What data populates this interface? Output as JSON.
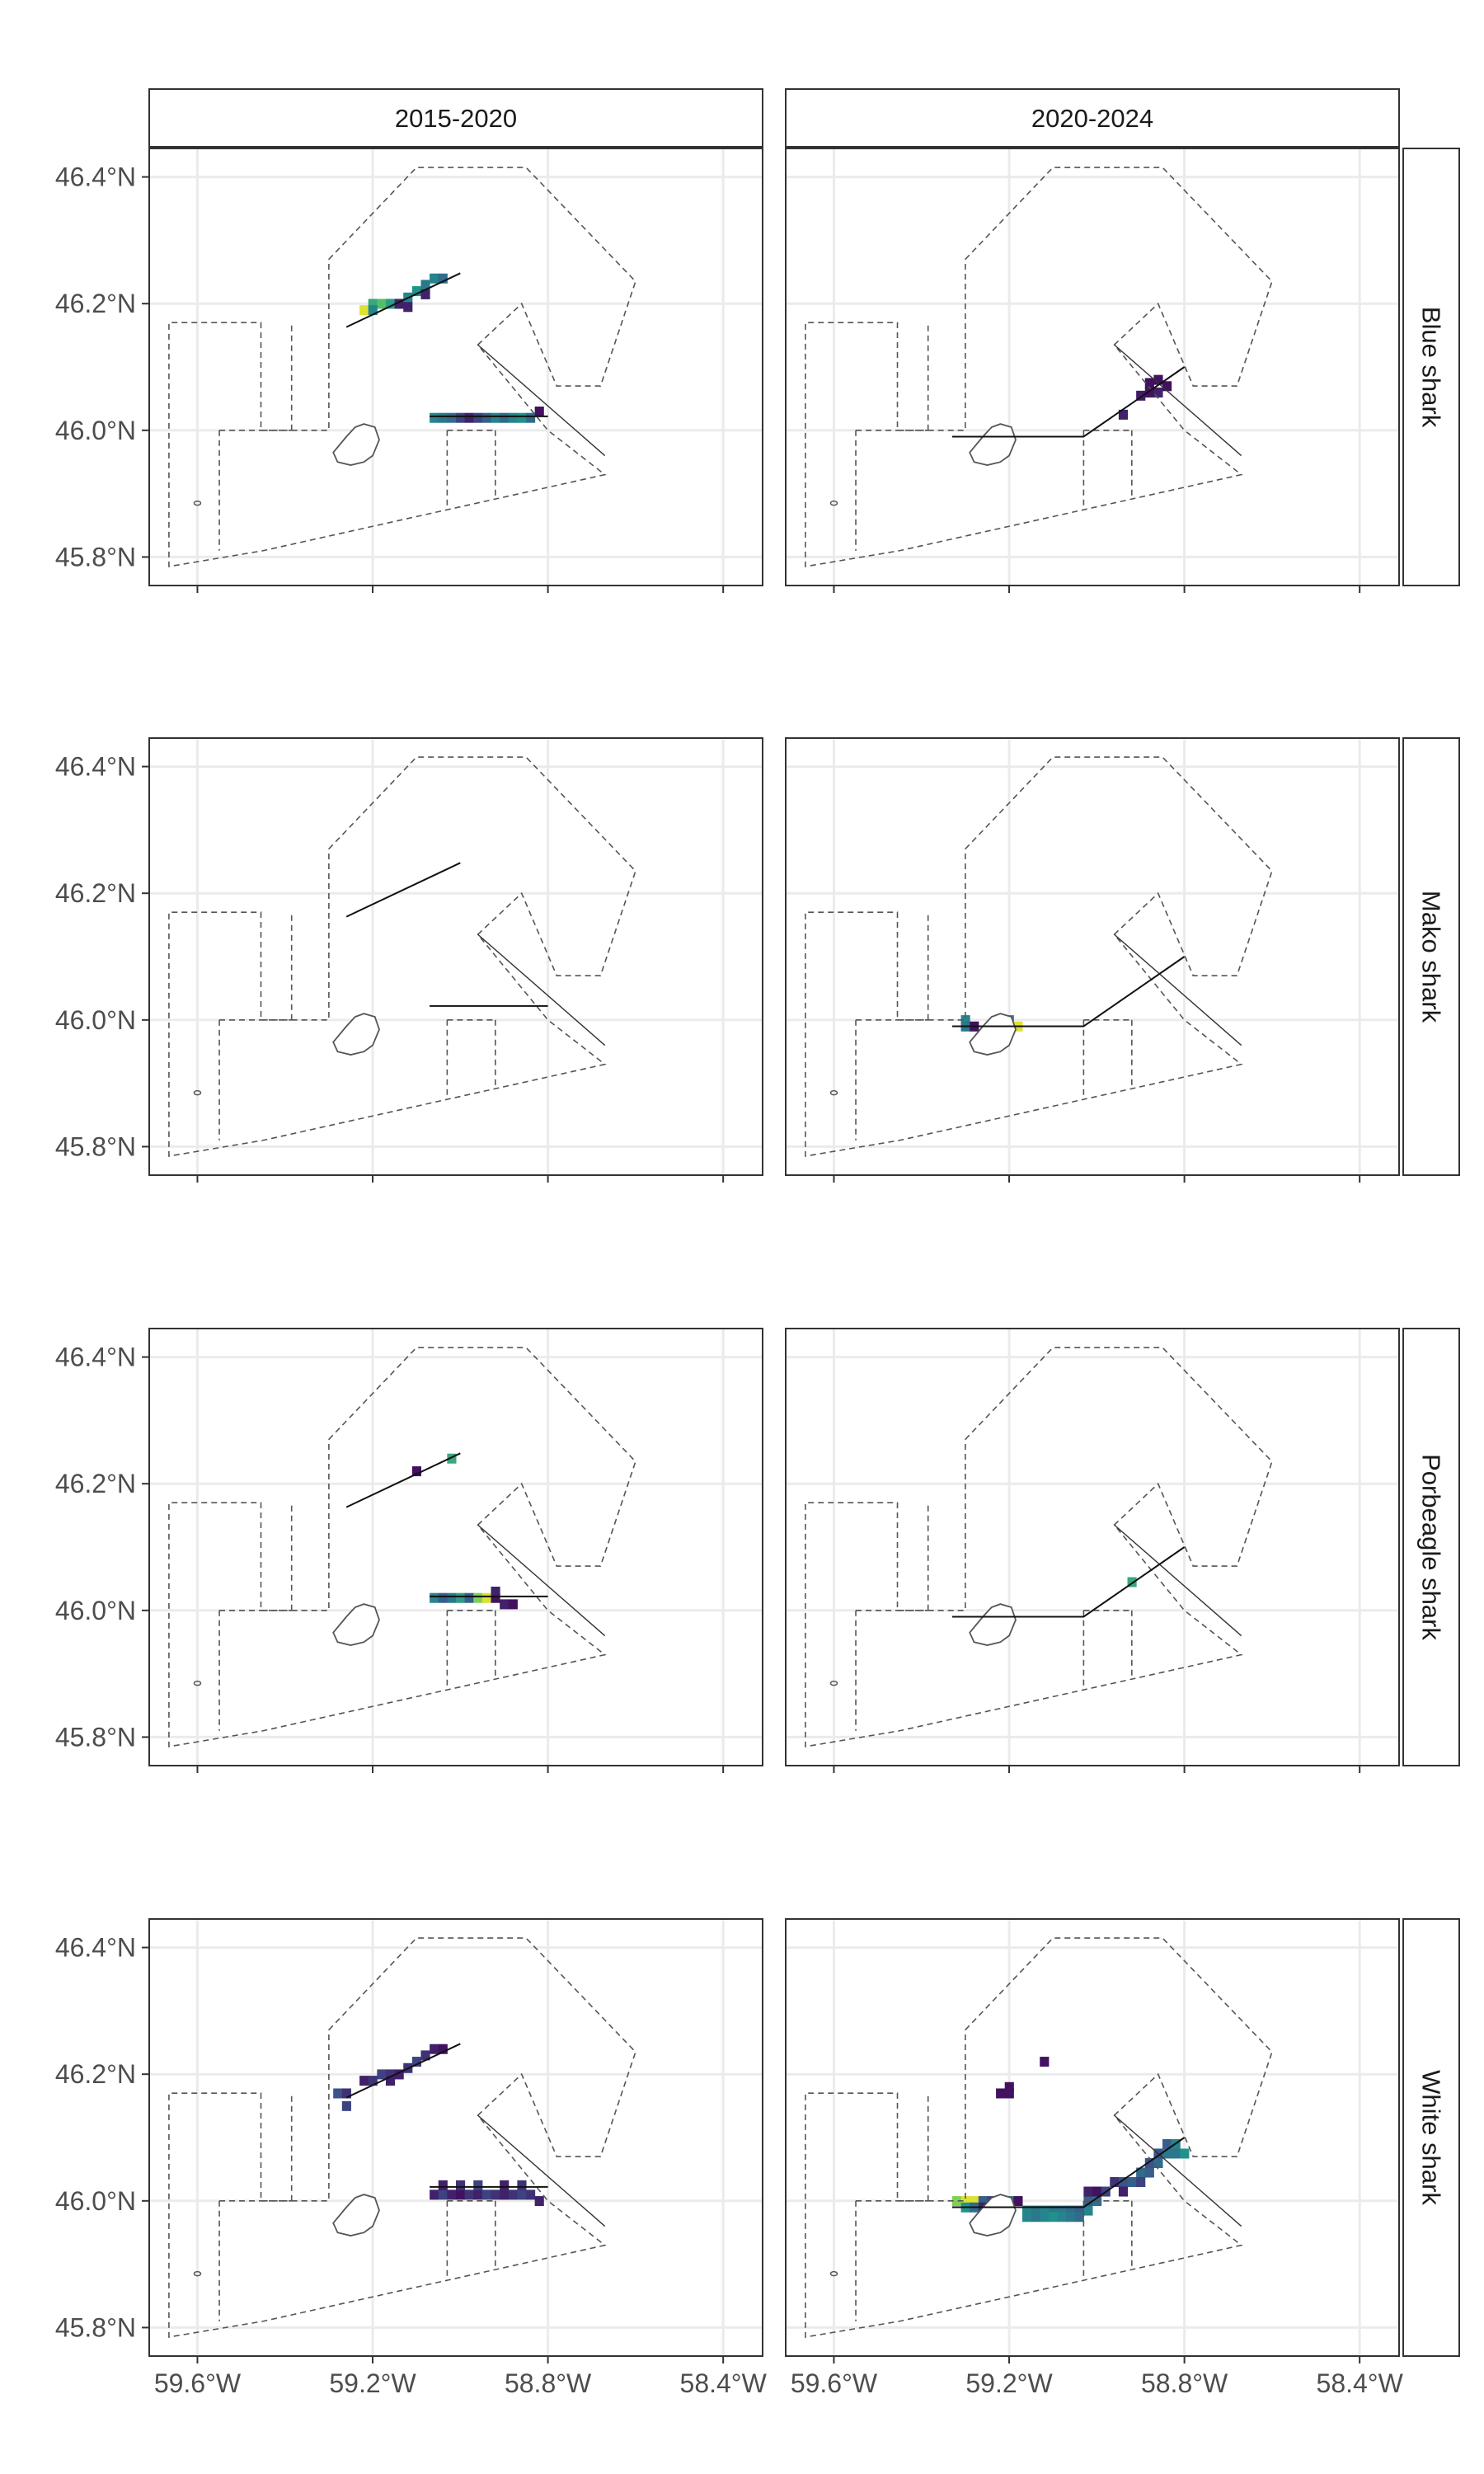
{
  "chart_data": {
    "type": "heatmap",
    "title": "",
    "xlabel": "",
    "ylabel": "",
    "facet_columns": [
      "2015-2020",
      "2020-2024"
    ],
    "facet_rows": [
      "Blue shark",
      "Mako shark",
      "Porbeagle shark",
      "White shark"
    ],
    "x_ticks": [
      {
        "value": -59.6,
        "label": "59.6°W"
      },
      {
        "value": -59.2,
        "label": "59.2°W"
      },
      {
        "value": -58.8,
        "label": "58.8°W"
      },
      {
        "value": -58.4,
        "label": "58.4°W"
      }
    ],
    "y_ticks": [
      {
        "value": 45.8,
        "label": "45.8°N"
      },
      {
        "value": 46.0,
        "label": "46.0°N"
      },
      {
        "value": 46.2,
        "label": "46.2°N"
      },
      {
        "value": 46.4,
        "label": "46.4°N"
      }
    ],
    "xlim": [
      -59.71,
      -58.31
    ],
    "ylim": [
      45.755,
      46.445
    ],
    "grid": true,
    "legend": "none",
    "cell_size_deg": [
      0.02,
      0.015
    ],
    "color_scale": "viridis",
    "color_stops": [
      "#440154",
      "#3b528b",
      "#21918c",
      "#5ec962",
      "#fde725"
    ],
    "cells": {
      "Blue shark|2015-2020": [
        [
          -59.22,
          46.19,
          0.95
        ],
        [
          -59.2,
          46.2,
          0.6
        ],
        [
          -59.18,
          46.2,
          0.7
        ],
        [
          -59.16,
          46.2,
          0.55
        ],
        [
          -59.14,
          46.2,
          0.1
        ],
        [
          -59.12,
          46.21,
          0.45
        ],
        [
          -59.1,
          46.22,
          0.5
        ],
        [
          -59.08,
          46.23,
          0.4
        ],
        [
          -59.06,
          46.24,
          0.45
        ],
        [
          -59.04,
          46.24,
          0.35
        ],
        [
          -59.2,
          46.19,
          0.45
        ],
        [
          -59.12,
          46.195,
          0.1
        ],
        [
          -59.08,
          46.215,
          0.1
        ],
        [
          -59.06,
          46.02,
          0.45
        ],
        [
          -59.04,
          46.02,
          0.4
        ],
        [
          -59.02,
          46.02,
          0.35
        ],
        [
          -59.0,
          46.02,
          0.2
        ],
        [
          -58.98,
          46.02,
          0.1
        ],
        [
          -58.96,
          46.02,
          0.2
        ],
        [
          -58.94,
          46.02,
          0.3
        ],
        [
          -58.92,
          46.02,
          0.45
        ],
        [
          -58.9,
          46.02,
          0.35
        ],
        [
          -58.88,
          46.02,
          0.45
        ],
        [
          -58.86,
          46.02,
          0.5
        ],
        [
          -58.84,
          46.02,
          0.35
        ],
        [
          -58.82,
          46.03,
          0.05
        ]
      ],
      "Blue shark|2020-2024": [
        [
          -59.24,
          45.99,
          0.1
        ],
        [
          -58.94,
          46.025,
          0.1
        ],
        [
          -58.9,
          46.055,
          0.08
        ],
        [
          -58.88,
          46.06,
          0.05
        ],
        [
          -58.88,
          46.075,
          0.05
        ],
        [
          -58.86,
          46.06,
          0.1
        ],
        [
          -58.86,
          46.08,
          0.05
        ],
        [
          -58.84,
          46.07,
          0.05
        ]
      ],
      "Mako shark|2015-2020": [],
      "Mako shark|2020-2024": [
        [
          -59.3,
          46.0,
          0.45
        ],
        [
          -59.3,
          45.99,
          0.4
        ],
        [
          -59.28,
          45.99,
          0.05
        ],
        [
          -59.2,
          46.0,
          0.45
        ],
        [
          -59.2,
          45.99,
          0.5
        ],
        [
          -59.18,
          45.99,
          0.95
        ]
      ],
      "Porbeagle shark|2015-2020": [
        [
          -59.1,
          46.22,
          0.05
        ],
        [
          -59.02,
          46.24,
          0.6
        ],
        [
          -59.06,
          46.02,
          0.45
        ],
        [
          -59.04,
          46.02,
          0.3
        ],
        [
          -59.02,
          46.02,
          0.4
        ],
        [
          -59.0,
          46.02,
          0.55
        ],
        [
          -58.98,
          46.02,
          0.3
        ],
        [
          -58.96,
          46.02,
          0.8
        ],
        [
          -58.94,
          46.02,
          0.95
        ],
        [
          -58.92,
          46.02,
          0.05
        ],
        [
          -58.9,
          46.01,
          0.1
        ],
        [
          -58.88,
          46.01,
          0.05
        ],
        [
          -58.92,
          46.03,
          0.1
        ]
      ],
      "Porbeagle shark|2020-2024": [
        [
          -58.92,
          46.045,
          0.6
        ]
      ],
      "White shark|2015-2020": [
        [
          -59.28,
          46.17,
          0.25
        ],
        [
          -59.26,
          46.15,
          0.2
        ],
        [
          -59.26,
          46.17,
          0.15
        ],
        [
          -59.22,
          46.19,
          0.1
        ],
        [
          -59.2,
          46.19,
          0.15
        ],
        [
          -59.18,
          46.2,
          0.2
        ],
        [
          -59.16,
          46.2,
          0.15
        ],
        [
          -59.14,
          46.2,
          0.1
        ],
        [
          -59.12,
          46.21,
          0.15
        ],
        [
          -59.1,
          46.22,
          0.2
        ],
        [
          -59.08,
          46.23,
          0.15
        ],
        [
          -59.06,
          46.24,
          0.1
        ],
        [
          -59.04,
          46.24,
          0.05
        ],
        [
          -59.16,
          46.19,
          0.1
        ],
        [
          -59.06,
          46.01,
          0.1
        ],
        [
          -59.04,
          46.01,
          0.2
        ],
        [
          -59.02,
          46.01,
          0.1
        ],
        [
          -59.0,
          46.01,
          0.05
        ],
        [
          -58.98,
          46.01,
          0.15
        ],
        [
          -58.96,
          46.01,
          0.1
        ],
        [
          -58.94,
          46.01,
          0.2
        ],
        [
          -58.92,
          46.01,
          0.15
        ],
        [
          -58.9,
          46.01,
          0.1
        ],
        [
          -58.88,
          46.01,
          0.15
        ],
        [
          -58.86,
          46.01,
          0.2
        ],
        [
          -58.84,
          46.01,
          0.15
        ],
        [
          -58.82,
          46.0,
          0.1
        ],
        [
          -59.04,
          46.025,
          0.1
        ],
        [
          -59.0,
          46.025,
          0.15
        ],
        [
          -58.96,
          46.025,
          0.2
        ],
        [
          -58.9,
          46.025,
          0.1
        ],
        [
          -58.86,
          46.025,
          0.15
        ]
      ],
      "White shark|2020-2024": [
        [
          -59.22,
          46.17,
          0.05
        ],
        [
          -59.2,
          46.18,
          0.05
        ],
        [
          -59.2,
          46.17,
          0.05
        ],
        [
          -59.12,
          46.22,
          0.05
        ],
        [
          -59.32,
          46.0,
          0.8
        ],
        [
          -59.3,
          46.0,
          0.95
        ],
        [
          -59.28,
          46.0,
          0.95
        ],
        [
          -59.26,
          46.0,
          0.3
        ],
        [
          -59.24,
          46.0,
          0.2
        ],
        [
          -59.22,
          46.0,
          0.45
        ],
        [
          -59.2,
          46.0,
          0.4
        ],
        [
          -59.18,
          46.0,
          0.05
        ],
        [
          -59.3,
          45.99,
          0.5
        ],
        [
          -59.28,
          45.99,
          0.35
        ],
        [
          -59.26,
          45.99,
          0.1
        ],
        [
          -59.24,
          45.99,
          0.05
        ],
        [
          -59.22,
          45.99,
          0.15
        ],
        [
          -59.2,
          45.99,
          0.25
        ],
        [
          -59.16,
          45.985,
          0.45
        ],
        [
          -59.14,
          45.985,
          0.4
        ],
        [
          -59.12,
          45.985,
          0.45
        ],
        [
          -59.1,
          45.985,
          0.4
        ],
        [
          -59.08,
          45.985,
          0.4
        ],
        [
          -59.06,
          45.985,
          0.35
        ],
        [
          -59.04,
          45.985,
          0.3
        ],
        [
          -59.02,
          45.985,
          0.45
        ],
        [
          -59.16,
          45.975,
          0.45
        ],
        [
          -59.14,
          45.975,
          0.4
        ],
        [
          -59.12,
          45.975,
          0.45
        ],
        [
          -59.1,
          45.975,
          0.5
        ],
        [
          -59.08,
          45.975,
          0.45
        ],
        [
          -59.06,
          45.975,
          0.4
        ],
        [
          -59.04,
          45.975,
          0.35
        ],
        [
          -59.02,
          46.0,
          0.3
        ],
        [
          -59.0,
          46.0,
          0.35
        ],
        [
          -59.02,
          46.015,
          0.1
        ],
        [
          -59.0,
          46.015,
          0.05
        ],
        [
          -58.98,
          46.015,
          0.2
        ],
        [
          -58.96,
          46.03,
          0.15
        ],
        [
          -58.94,
          46.03,
          0.25
        ],
        [
          -58.92,
          46.03,
          0.3
        ],
        [
          -58.9,
          46.045,
          0.35
        ],
        [
          -58.88,
          46.045,
          0.3
        ],
        [
          -58.88,
          46.06,
          0.25
        ],
        [
          -58.86,
          46.06,
          0.35
        ],
        [
          -58.86,
          46.075,
          0.25
        ],
        [
          -58.84,
          46.075,
          0.4
        ],
        [
          -58.84,
          46.09,
          0.3
        ],
        [
          -58.82,
          46.09,
          0.45
        ],
        [
          -58.82,
          46.075,
          0.4
        ],
        [
          -58.8,
          46.075,
          0.5
        ],
        [
          -58.9,
          46.03,
          0.2
        ],
        [
          -58.94,
          46.015,
          0.1
        ]
      ]
    },
    "transects": {
      "2015-2020": [
        [
          [
            -59.26,
            46.163
          ],
          [
            -59.0,
            46.248
          ]
        ],
        [
          [
            -59.07,
            46.022
          ],
          [
            -58.8,
            46.022
          ]
        ]
      ],
      "2020-2024": [
        [
          [
            -59.33,
            45.99
          ],
          [
            -59.03,
            45.99
          ],
          [
            -58.8,
            46.1
          ]
        ]
      ]
    },
    "zones": {
      "boundary": [
        [
          -59.3,
          46.27
        ],
        [
          -59.1,
          46.415
        ],
        [
          -58.85,
          46.415
        ],
        [
          -58.6,
          46.235
        ],
        [
          -58.68,
          46.07
        ],
        [
          -58.78,
          46.07
        ],
        [
          -58.86,
          46.2
        ],
        [
          -58.96,
          46.135
        ],
        [
          -58.8,
          46.0
        ],
        [
          -58.67,
          45.93
        ],
        [
          -59.45,
          45.81
        ],
        [
          -59.665,
          45.785
        ],
        [
          -59.665,
          46.17
        ],
        [
          -59.455,
          46.17
        ],
        [
          -59.455,
          46.0
        ],
        [
          -59.3,
          46.0
        ],
        [
          -59.3,
          46.27
        ]
      ],
      "inner_lines": [
        [
          [
            -59.55,
            46.0
          ],
          [
            -59.55,
            45.81
          ]
        ],
        [
          [
            -59.55,
            46.0
          ],
          [
            -59.385,
            46.0
          ]
        ],
        [
          [
            -59.385,
            46.0
          ],
          [
            -59.385,
            46.17
          ]
        ],
        [
          [
            -59.03,
            46.0
          ],
          [
            -59.03,
            45.875
          ]
        ],
        [
          [
            -59.03,
            46.0
          ],
          [
            -58.92,
            46.0
          ]
        ],
        [
          [
            -58.92,
            46.0
          ],
          [
            -58.92,
            45.895
          ]
        ],
        [
          [
            -58.96,
            46.135
          ],
          [
            -58.67,
            45.96
          ]
        ]
      ],
      "island": [
        [
          -59.29,
          45.965
        ],
        [
          -59.26,
          45.99
        ],
        [
          -59.24,
          46.005
        ],
        [
          -59.22,
          46.01
        ],
        [
          -59.195,
          46.005
        ],
        [
          -59.185,
          45.985
        ],
        [
          -59.2,
          45.96
        ],
        [
          -59.22,
          45.95
        ],
        [
          -59.25,
          45.945
        ],
        [
          -59.28,
          45.95
        ],
        [
          -59.29,
          45.965
        ]
      ],
      "marker": [
        -59.6,
        45.885
      ]
    }
  }
}
